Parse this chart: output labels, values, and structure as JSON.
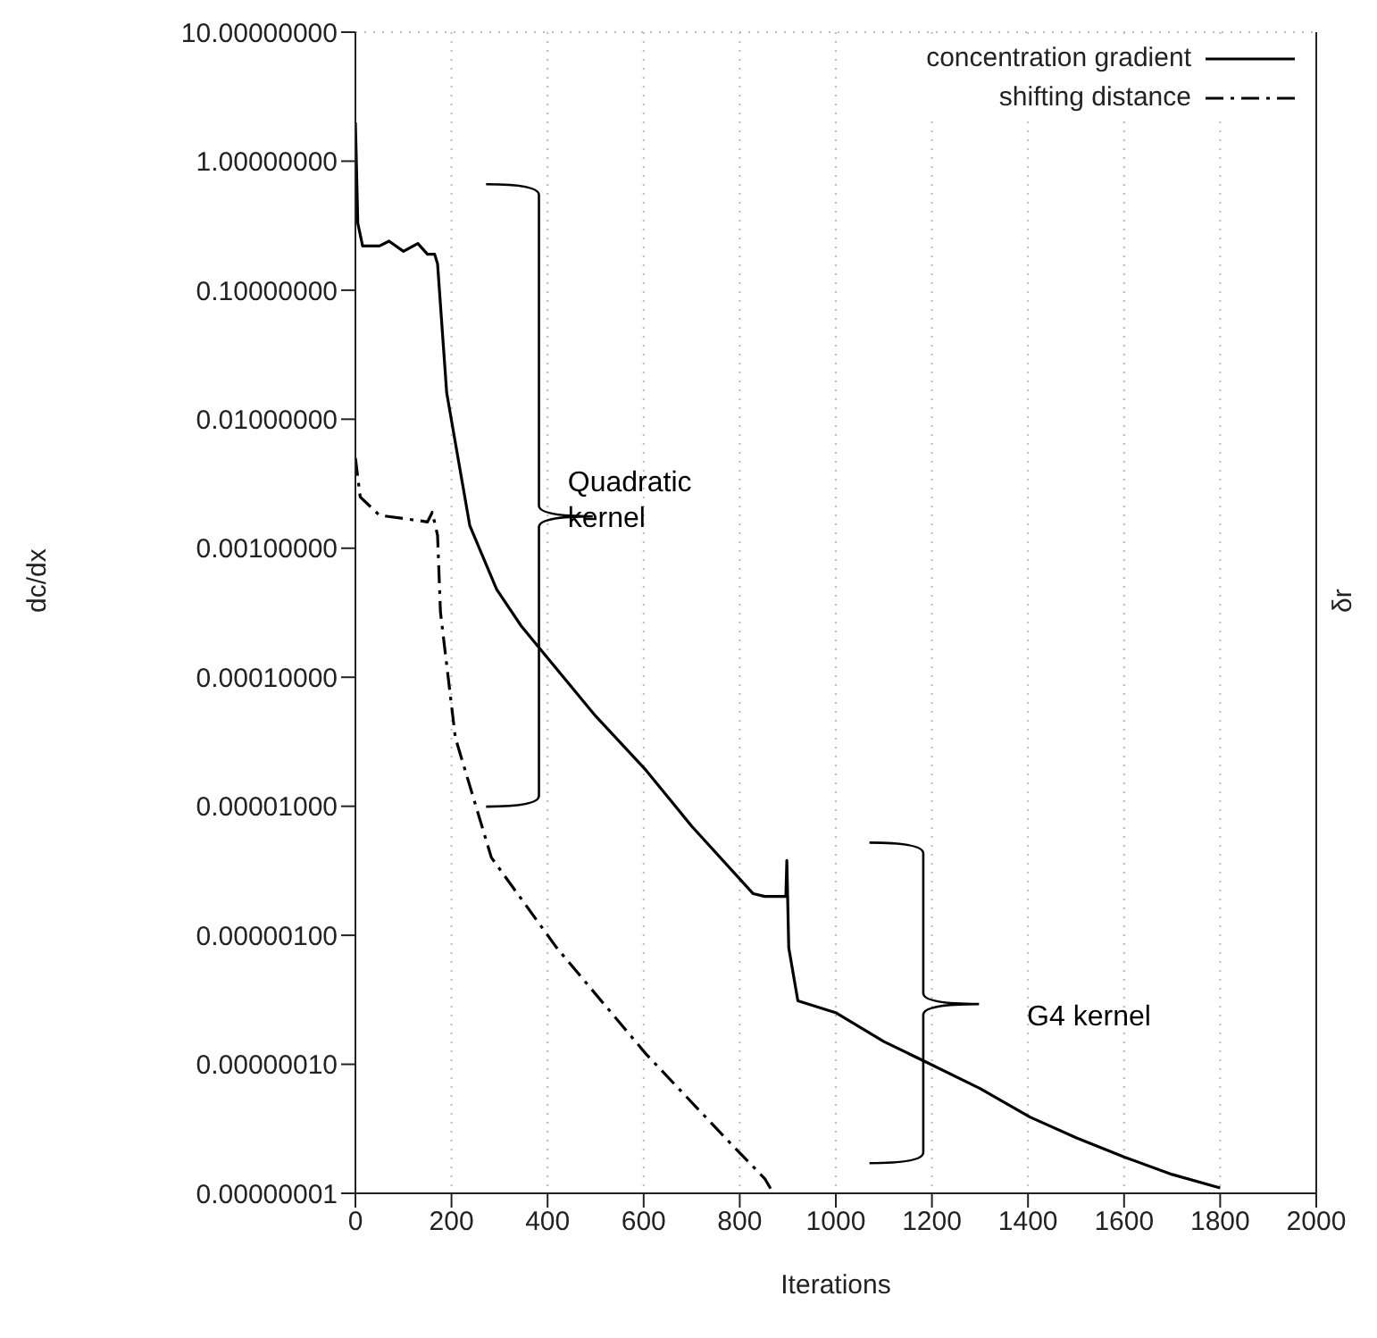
{
  "chart_data": {
    "type": "line",
    "xlabel": "Iterations",
    "ylabel": "dc/dx",
    "y2label": "δr",
    "log": "y",
    "grid": true,
    "legend": "top right",
    "marker": "none",
    "xlim": [
      0,
      2000
    ],
    "xticks": [
      0,
      200,
      400,
      600,
      800,
      1000,
      1200,
      1400,
      1600,
      1800,
      2000
    ],
    "ylim": [
      1e-08,
      10
    ],
    "yticks": [
      {
        "value": 10,
        "label": "10.00000000"
      },
      {
        "value": 1,
        "label": "1.00000000"
      },
      {
        "value": 0.1,
        "label": "0.10000000"
      },
      {
        "value": 0.01,
        "label": "0.01000000"
      },
      {
        "value": 0.001,
        "label": "0.00100000"
      },
      {
        "value": 0.0001,
        "label": "0.00010000"
      },
      {
        "value": 1e-05,
        "label": "0.00001000"
      },
      {
        "value": 1e-06,
        "label": "0.00000100"
      },
      {
        "value": 1e-07,
        "label": "0.00000010"
      },
      {
        "value": 1e-08,
        "label": "0.00000001"
      }
    ],
    "annotations": [
      "Quadratic kernel",
      "G4 kernel"
    ],
    "series": [
      {
        "name": "concentration gradient",
        "color": "#000000",
        "line_style": "solid",
        "x": [
          0,
          5,
          15,
          50,
          70,
          100,
          130,
          150,
          165,
          171,
          190,
          238,
          294,
          345,
          394,
          500,
          605,
          700,
          828,
          852,
          896,
          898,
          902,
          921,
          1001,
          1100,
          1181,
          1300,
          1404,
          1500,
          1602,
          1700,
          1800
        ],
        "values": [
          2,
          0.33,
          0.22,
          0.22,
          0.24,
          0.2,
          0.23,
          0.19,
          0.19,
          0.16,
          0.016,
          0.0015,
          0.00048,
          0.00025,
          0.00015,
          5e-05,
          1.9e-05,
          7e-06,
          2.1e-06,
          2e-06,
          2e-06,
          3.8e-06,
          8e-07,
          3.1e-07,
          2.5e-07,
          1.5e-07,
          1.07e-07,
          6.5e-08,
          3.9e-08,
          2.7e-08,
          1.9e-08,
          1.4e-08,
          1.1e-08
        ]
      },
      {
        "name": "shifting distance",
        "color": "#000000",
        "line_style": "dashed",
        "x": [
          0,
          10,
          50,
          100,
          150,
          160,
          171,
          177,
          208,
          283,
          419,
          605,
          778,
          852,
          870
        ],
        "values": [
          0.005,
          0.0025,
          0.0018,
          0.0017,
          0.0016,
          0.0019,
          0.00126,
          0.00032,
          3.4e-05,
          4e-06,
          8e-07,
          1.2e-07,
          2.5e-08,
          1.3e-08,
          1e-08
        ]
      }
    ]
  }
}
